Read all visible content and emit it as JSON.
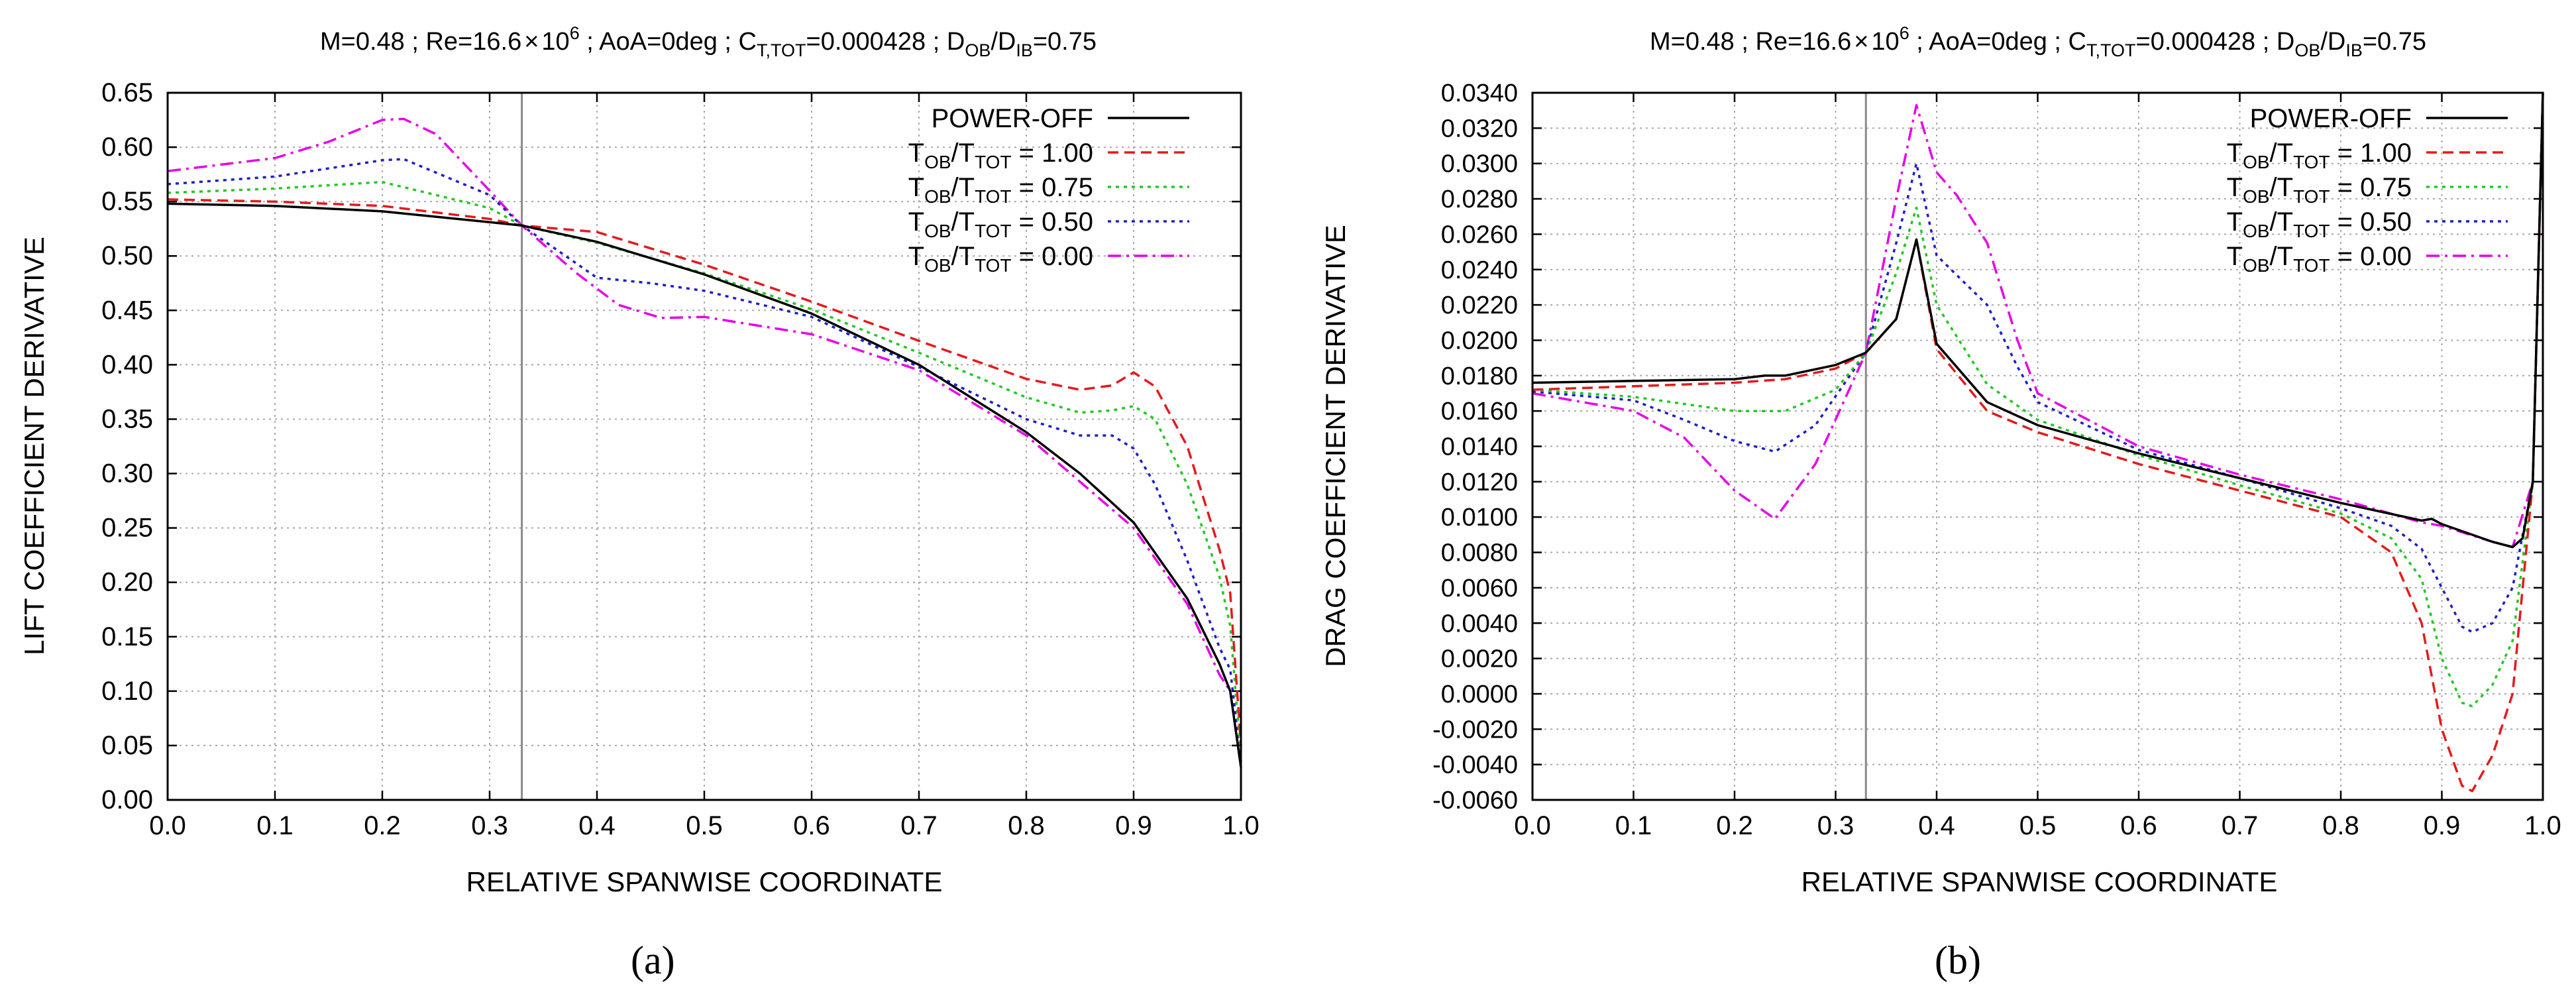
{
  "chart_data": [
    {
      "type": "line",
      "title": "M=0.48 ; Re=16.6×10⁶ ; AoA=0deg ; C_T,TOT=0.000428 ; D_OB/D_IB=0.75",
      "title_parts": {
        "p1": "M=0.48 ; Re=16.6",
        "p2": "×",
        "p3": "10",
        "p4": "6",
        "p5": " ; AoA=0deg ; C",
        "p6": "T,TOT",
        "p7": "=0.000428 ; D",
        "p8": "OB",
        "p9": "/D",
        "p10": "IB",
        "p11": "=0.75"
      },
      "xlabel": "RELATIVE SPANWISE COORDINATE",
      "ylabel": "LIFT COEFFICIENT DERIVATIVE",
      "xlim": [
        0,
        1
      ],
      "ylim": [
        0,
        0.65
      ],
      "xticks": [
        0,
        0.1,
        0.2,
        0.3,
        0.4,
        0.5,
        0.6,
        0.7,
        0.8,
        0.9,
        1.0
      ],
      "xtick_labels": [
        "0.0",
        "0.1",
        "0.2",
        "0.3",
        "0.4",
        "0.5",
        "0.6",
        "0.7",
        "0.8",
        "0.9",
        "1.0"
      ],
      "yticks": [
        0,
        0.05,
        0.1,
        0.15,
        0.2,
        0.25,
        0.3,
        0.35,
        0.4,
        0.45,
        0.5,
        0.55,
        0.6,
        0.65
      ],
      "ytick_labels": [
        "0.00",
        "0.05",
        "0.10",
        "0.15",
        "0.20",
        "0.25",
        "0.30",
        "0.35",
        "0.40",
        "0.45",
        "0.50",
        "0.55",
        "0.60",
        "0.65"
      ],
      "grid": true,
      "vline_x": 0.33,
      "legend_position": "top-right",
      "panel_label": "(a)",
      "series": [
        {
          "name": "POWER-OFF",
          "color": "#000000",
          "dash": "solid",
          "x": [
            0,
            0.1,
            0.2,
            0.3,
            0.33,
            0.4,
            0.5,
            0.6,
            0.7,
            0.8,
            0.85,
            0.9,
            0.95,
            0.98,
            0.99,
            1.0
          ],
          "y": [
            0.548,
            0.546,
            0.541,
            0.531,
            0.528,
            0.513,
            0.483,
            0.447,
            0.4,
            0.338,
            0.3,
            0.255,
            0.185,
            0.125,
            0.1,
            0.03
          ]
        },
        {
          "name": "T_OB/T_TOT = 1.00",
          "color": "#e41a1c",
          "dash": "dashed",
          "x": [
            0,
            0.1,
            0.2,
            0.3,
            0.33,
            0.4,
            0.5,
            0.6,
            0.7,
            0.8,
            0.85,
            0.88,
            0.9,
            0.92,
            0.95,
            0.98,
            0.99,
            1.0
          ],
          "y": [
            0.552,
            0.55,
            0.546,
            0.534,
            0.528,
            0.522,
            0.492,
            0.458,
            0.422,
            0.387,
            0.377,
            0.381,
            0.393,
            0.38,
            0.325,
            0.23,
            0.19,
            0.05
          ]
        },
        {
          "name": "T_OB/T_TOT = 0.75",
          "color": "#22c822",
          "dash": "dotted",
          "x": [
            0,
            0.1,
            0.2,
            0.3,
            0.33,
            0.4,
            0.5,
            0.6,
            0.7,
            0.8,
            0.85,
            0.88,
            0.9,
            0.92,
            0.95,
            0.98,
            0.99,
            1.0
          ],
          "y": [
            0.558,
            0.562,
            0.568,
            0.544,
            0.528,
            0.512,
            0.484,
            0.451,
            0.411,
            0.37,
            0.356,
            0.358,
            0.362,
            0.35,
            0.29,
            0.205,
            0.16,
            0.04
          ]
        },
        {
          "name": "T_OB/T_TOT = 0.50",
          "color": "#1e1ec8",
          "dash": "dotted",
          "x": [
            0,
            0.1,
            0.2,
            0.22,
            0.3,
            0.33,
            0.4,
            0.45,
            0.5,
            0.6,
            0.7,
            0.8,
            0.85,
            0.88,
            0.9,
            0.92,
            0.95,
            0.98,
            0.99,
            1.0
          ],
          "y": [
            0.566,
            0.573,
            0.588,
            0.589,
            0.556,
            0.528,
            0.48,
            0.475,
            0.468,
            0.444,
            0.398,
            0.35,
            0.335,
            0.335,
            0.323,
            0.29,
            0.22,
            0.14,
            0.12,
            0.035
          ]
        },
        {
          "name": "T_OB/T_TOT = 0.00",
          "color": "#e600e6",
          "dash": "dashdot",
          "x": [
            0,
            0.1,
            0.15,
            0.2,
            0.22,
            0.25,
            0.3,
            0.33,
            0.38,
            0.42,
            0.46,
            0.5,
            0.6,
            0.7,
            0.8,
            0.9,
            0.95,
            0.98,
            0.99,
            1.0
          ],
          "y": [
            0.578,
            0.59,
            0.605,
            0.625,
            0.626,
            0.612,
            0.56,
            0.528,
            0.485,
            0.455,
            0.443,
            0.444,
            0.428,
            0.395,
            0.335,
            0.25,
            0.18,
            0.115,
            0.1,
            0.03
          ]
        }
      ]
    },
    {
      "type": "line",
      "title": "M=0.48 ; Re=16.6×10⁶ ; AoA=0deg ; C_T,TOT=0.000428 ; D_OB/D_IB=0.75",
      "title_parts": {
        "p1": "M=0.48 ; Re=16.6",
        "p2": "×",
        "p3": "10",
        "p4": "6",
        "p5": " ; AoA=0deg ; C",
        "p6": "T,TOT",
        "p7": "=0.000428 ; D",
        "p8": "OB",
        "p9": "/D",
        "p10": "IB",
        "p11": "=0.75"
      },
      "xlabel": "RELATIVE SPANWISE COORDINATE",
      "ylabel": "DRAG COEFFICIENT DERIVATIVE",
      "xlim": [
        0,
        1
      ],
      "ylim": [
        -0.006,
        0.034
      ],
      "xticks": [
        0,
        0.1,
        0.2,
        0.3,
        0.4,
        0.5,
        0.6,
        0.7,
        0.8,
        0.9,
        1.0
      ],
      "xtick_labels": [
        "0.0",
        "0.1",
        "0.2",
        "0.3",
        "0.4",
        "0.5",
        "0.6",
        "0.7",
        "0.8",
        "0.9",
        "1.0"
      ],
      "yticks": [
        -0.006,
        -0.004,
        -0.002,
        0,
        0.002,
        0.004,
        0.006,
        0.008,
        0.01,
        0.012,
        0.014,
        0.016,
        0.018,
        0.02,
        0.022,
        0.024,
        0.026,
        0.028,
        0.03,
        0.032,
        0.034
      ],
      "ytick_labels": [
        "-0.0060",
        "-0.0040",
        "-0.0020",
        "0.0000",
        "0.0020",
        "0.0040",
        "0.0060",
        "0.0080",
        "0.0100",
        "0.0120",
        "0.0140",
        "0.0160",
        "0.0180",
        "0.0200",
        "0.0220",
        "0.0240",
        "0.0260",
        "0.0280",
        "0.0300",
        "0.0320",
        "0.0340"
      ],
      "grid": true,
      "vline_x": 0.33,
      "legend_position": "top-right",
      "panel_label": "(b)",
      "series": [
        {
          "name": "POWER-OFF",
          "color": "#000000",
          "dash": "solid",
          "x": [
            0,
            0.1,
            0.2,
            0.23,
            0.25,
            0.3,
            0.33,
            0.36,
            0.38,
            0.4,
            0.45,
            0.5,
            0.6,
            0.7,
            0.8,
            0.88,
            0.89,
            0.9,
            0.95,
            0.97,
            0.98,
            0.99,
            1.0
          ],
          "y": [
            0.0176,
            0.0177,
            0.0178,
            0.018,
            0.018,
            0.0186,
            0.0193,
            0.0212,
            0.0257,
            0.0198,
            0.0165,
            0.0152,
            0.0136,
            0.0122,
            0.0108,
            0.0098,
            0.0099,
            0.0096,
            0.0086,
            0.0083,
            0.0088,
            0.012,
            0.034
          ]
        },
        {
          "name": "T_OB/T_TOT = 1.00",
          "color": "#e41a1c",
          "dash": "dashed",
          "x": [
            0,
            0.1,
            0.2,
            0.25,
            0.3,
            0.33,
            0.36,
            0.38,
            0.4,
            0.45,
            0.5,
            0.6,
            0.7,
            0.8,
            0.85,
            0.88,
            0.9,
            0.92,
            0.93,
            0.95,
            0.97,
            0.98,
            0.99,
            1.0
          ],
          "y": [
            0.0172,
            0.0174,
            0.0176,
            0.0178,
            0.0184,
            0.0193,
            0.0212,
            0.0257,
            0.0195,
            0.016,
            0.0148,
            0.013,
            0.0115,
            0.01,
            0.008,
            0.004,
            -0.002,
            -0.0052,
            -0.0055,
            -0.0035,
            0.0,
            0.006,
            0.012,
            0.034
          ]
        },
        {
          "name": "T_OB/T_TOT = 0.75",
          "color": "#22c822",
          "dash": "dotted",
          "x": [
            0,
            0.1,
            0.2,
            0.25,
            0.3,
            0.33,
            0.36,
            0.38,
            0.4,
            0.45,
            0.5,
            0.6,
            0.7,
            0.8,
            0.85,
            0.88,
            0.9,
            0.92,
            0.93,
            0.95,
            0.97,
            0.99,
            1.0
          ],
          "y": [
            0.0172,
            0.0168,
            0.016,
            0.016,
            0.0172,
            0.0193,
            0.0238,
            0.0275,
            0.022,
            0.0175,
            0.0155,
            0.0135,
            0.0118,
            0.0102,
            0.0088,
            0.0065,
            0.002,
            -0.0005,
            -0.0007,
            0.0005,
            0.003,
            0.012,
            0.034
          ]
        },
        {
          "name": "T_OB/T_TOT = 0.50",
          "color": "#1e1ec8",
          "dash": "dotted",
          "x": [
            0,
            0.1,
            0.15,
            0.2,
            0.24,
            0.28,
            0.33,
            0.36,
            0.38,
            0.4,
            0.45,
            0.48,
            0.5,
            0.6,
            0.7,
            0.8,
            0.85,
            0.88,
            0.9,
            0.92,
            0.93,
            0.95,
            0.97,
            0.99,
            1.0
          ],
          "y": [
            0.0171,
            0.0166,
            0.0155,
            0.0143,
            0.0137,
            0.0152,
            0.0193,
            0.0255,
            0.03,
            0.0248,
            0.022,
            0.0185,
            0.0165,
            0.0138,
            0.0122,
            0.0105,
            0.0095,
            0.0082,
            0.006,
            0.0038,
            0.0035,
            0.004,
            0.006,
            0.012,
            0.034
          ]
        },
        {
          "name": "T_OB/T_TOT = 0.00",
          "color": "#e600e6",
          "dash": "dashdot",
          "x": [
            0,
            0.1,
            0.15,
            0.2,
            0.24,
            0.28,
            0.33,
            0.36,
            0.38,
            0.4,
            0.42,
            0.45,
            0.48,
            0.5,
            0.6,
            0.7,
            0.8,
            0.88,
            0.9,
            0.95,
            0.97,
            0.99,
            1.0
          ],
          "y": [
            0.017,
            0.016,
            0.0145,
            0.0115,
            0.0099,
            0.013,
            0.0193,
            0.028,
            0.0333,
            0.0295,
            0.0282,
            0.0255,
            0.02,
            0.017,
            0.014,
            0.0124,
            0.011,
            0.0097,
            0.0095,
            0.0086,
            0.0083,
            0.012,
            0.034
          ]
        }
      ]
    }
  ]
}
